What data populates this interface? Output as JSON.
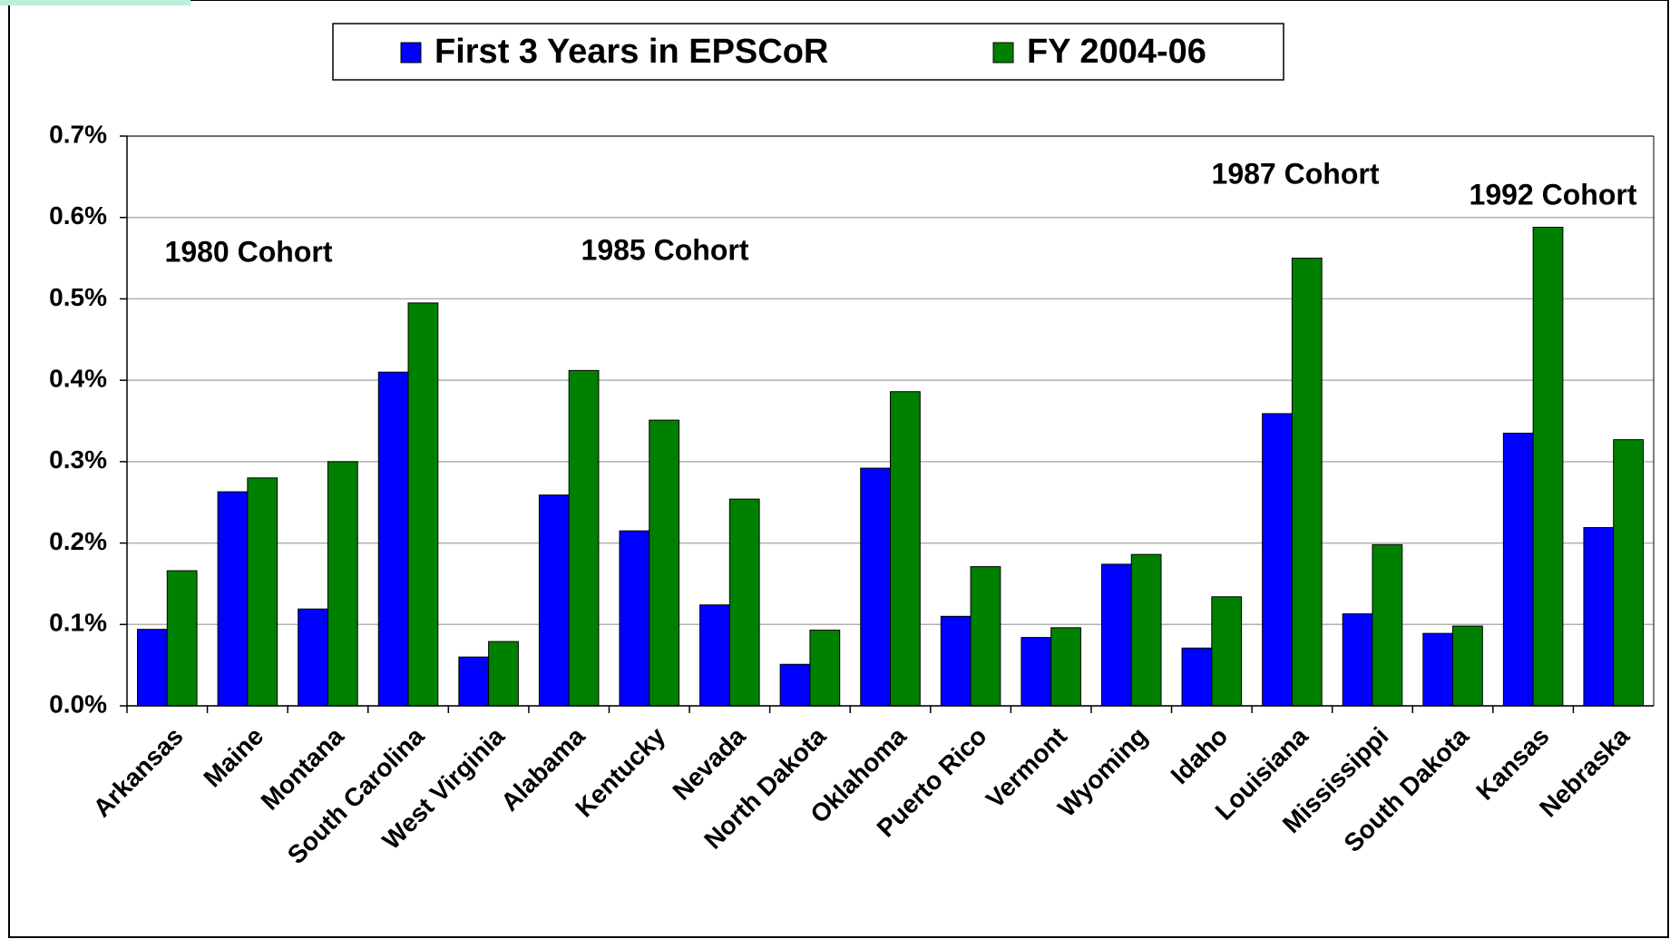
{
  "chart_data": {
    "type": "bar",
    "categories": [
      "Arkansas",
      "Maine",
      "Montana",
      "South Carolina",
      "West Virginia",
      "Alabama",
      "Kentucky",
      "Nevada",
      "North Dakota",
      "Oklahoma",
      "Puerto Rico",
      "Vermont",
      "Wyoming",
      "Idaho",
      "Louisiana",
      "Mississippi",
      "South Dakota",
      "Kansas",
      "Nebraska"
    ],
    "series": [
      {
        "name": "First 3 Years in EPSCoR",
        "color": "#0000ff",
        "values": [
          0.094,
          0.263,
          0.119,
          0.41,
          0.06,
          0.259,
          0.215,
          0.124,
          0.051,
          0.292,
          0.11,
          0.084,
          0.174,
          0.071,
          0.359,
          0.113,
          0.089,
          0.335,
          0.219
        ]
      },
      {
        "name": "FY 2004-06",
        "color": "#008000",
        "values": [
          0.166,
          0.28,
          0.3,
          0.495,
          0.079,
          0.412,
          0.351,
          0.254,
          0.093,
          0.386,
          0.171,
          0.096,
          0.186,
          0.134,
          0.55,
          0.198,
          0.098,
          0.588,
          0.327
        ]
      }
    ],
    "ylim": [
      0,
      0.7
    ],
    "yticks": [
      {
        "value": 0,
        "label": "0.0%"
      },
      {
        "value": 0.1,
        "label": "0.1%"
      },
      {
        "value": 0.2,
        "label": "0.2%"
      },
      {
        "value": 0.3,
        "label": "0.3%"
      },
      {
        "value": 0.4,
        "label": "0.4%"
      },
      {
        "value": 0.5,
        "label": "0.5%"
      },
      {
        "value": 0.6,
        "label": "0.6%"
      },
      {
        "value": 0.7,
        "label": "0.7%"
      }
    ],
    "grid": true,
    "annotations": [
      "1980 Cohort",
      "1985 Cohort",
      "1987 Cohort",
      "1992 Cohort"
    ]
  }
}
